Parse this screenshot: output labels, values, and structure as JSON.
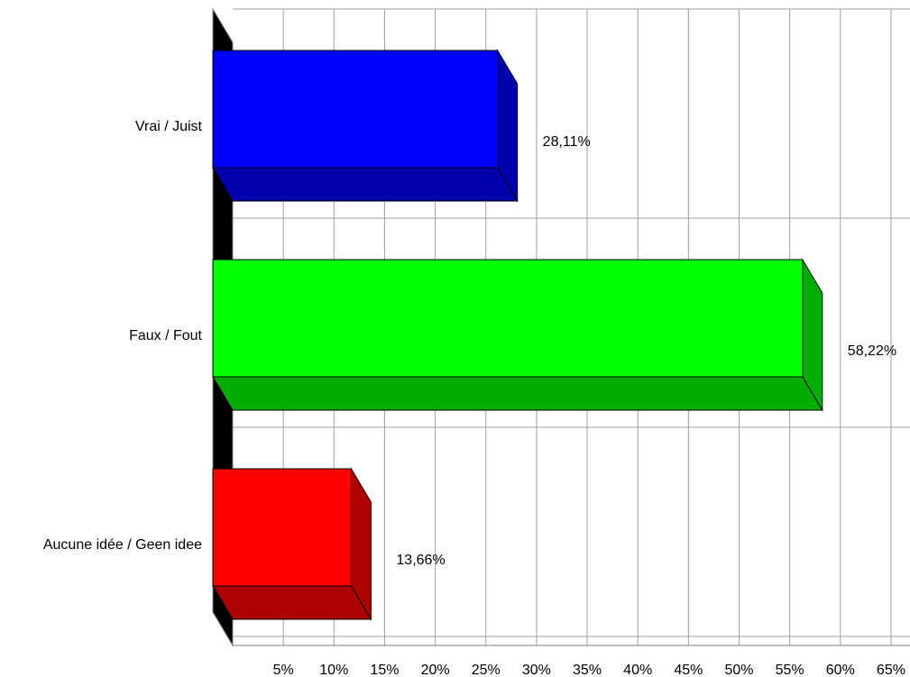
{
  "chart_data": {
    "type": "bar",
    "orientation": "horizontal",
    "three_d": true,
    "categories": [
      "Vrai / Juist",
      "Faux / Fout",
      "Aucune idée / Geen idee"
    ],
    "values": [
      28.11,
      58.22,
      13.66
    ],
    "data_labels": [
      "28,11%",
      "58,22%",
      "13,66%"
    ],
    "colors": [
      "#0000ff",
      "#00ff00",
      "#ff0000"
    ],
    "xticks": [
      "5%",
      "10%",
      "15%",
      "20%",
      "25%",
      "30%",
      "35%",
      "40%",
      "45%",
      "50%",
      "55%",
      "60%",
      "65%"
    ],
    "xlim": [
      0,
      67.5
    ],
    "grid": true,
    "legend": "none",
    "title": "",
    "xlabel": "",
    "ylabel": ""
  }
}
